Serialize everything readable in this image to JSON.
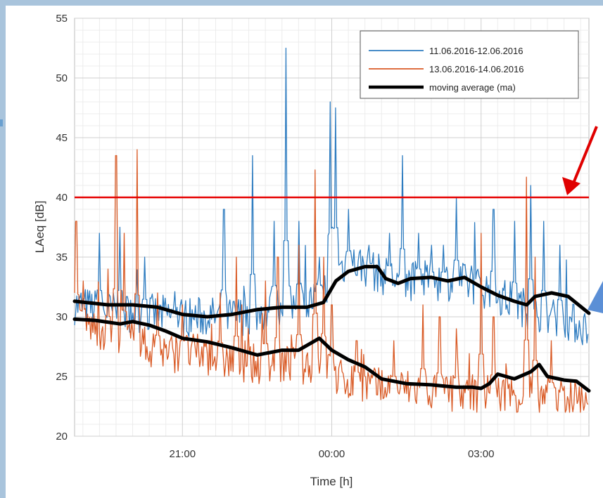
{
  "chart_data": {
    "type": "line",
    "xlabel": "Time [h]",
    "ylabel": "LAeq [dB]",
    "xlim": [
      "18:50",
      "05:10"
    ],
    "ylim": [
      20,
      55
    ],
    "x_ticks": [
      "21:00",
      "00:00",
      "03:00"
    ],
    "y_ticks": [
      20,
      25,
      30,
      35,
      40,
      45,
      50,
      55
    ],
    "grid": "minor+major",
    "legend": {
      "placement": "top-right",
      "entries": [
        "11.06.2016-12.06.2016",
        "13.06.2016-14.06.2016",
        "moving average (ma)"
      ]
    },
    "colors": {
      "series_1": "#2e7cc0",
      "series_2": "#d95a25",
      "moving_average": "#000000",
      "threshold": "#e60000",
      "arrow_red": "#e00000",
      "arrow_blue": "#5b8fd6"
    },
    "reference_line": {
      "y": 40
    },
    "series": [
      {
        "name": "11.06.2016-12.06.2016",
        "baseline": [
          [
            "18:50",
            31
          ],
          [
            "19:30",
            30.5
          ],
          [
            "20:30",
            30.2
          ],
          [
            "21:00",
            30
          ],
          [
            "22:00",
            30
          ],
          [
            "22:30",
            30.3
          ],
          [
            "23:00",
            31
          ],
          [
            "23:30",
            31
          ],
          [
            "23:50",
            32
          ],
          [
            "00:00",
            34
          ],
          [
            "00:30",
            34.5
          ],
          [
            "00:45",
            34
          ],
          [
            "01:00",
            33.5
          ],
          [
            "01:30",
            33
          ],
          [
            "02:00",
            33
          ],
          [
            "02:30",
            33
          ],
          [
            "03:00",
            32.5
          ],
          [
            "03:30",
            31.5
          ],
          [
            "04:00",
            30.5
          ],
          [
            "04:30",
            30
          ],
          [
            "05:10",
            29
          ]
        ],
        "peaks": [
          [
            "19:20",
            37
          ],
          [
            "19:45",
            37.5
          ],
          [
            "20:15",
            35
          ],
          [
            "21:50",
            39
          ],
          [
            "22:25",
            43.5
          ],
          [
            "22:50",
            38
          ],
          [
            "23:05",
            52.5
          ],
          [
            "23:20",
            38
          ],
          [
            "23:45",
            35
          ],
          [
            "23:58",
            48
          ],
          [
            "00:05",
            47.5
          ],
          [
            "00:20",
            39
          ],
          [
            "00:45",
            36
          ],
          [
            "01:10",
            37
          ],
          [
            "01:25",
            43.5
          ],
          [
            "01:45",
            37
          ],
          [
            "02:00",
            36
          ],
          [
            "02:15",
            36
          ],
          [
            "02:30",
            40
          ],
          [
            "03:15",
            39
          ],
          [
            "03:40",
            38
          ],
          [
            "04:00",
            41
          ],
          [
            "04:15",
            38
          ],
          [
            "04:35",
            36
          ]
        ]
      },
      {
        "name": "13.06.2016-14.06.2016",
        "baseline": [
          [
            "18:50",
            30
          ],
          [
            "19:15",
            29
          ],
          [
            "19:45",
            28.5
          ],
          [
            "20:15",
            27.5
          ],
          [
            "20:45",
            27
          ],
          [
            "21:00",
            27
          ],
          [
            "21:30",
            26.8
          ],
          [
            "22:00",
            26.2
          ],
          [
            "22:30",
            26
          ],
          [
            "23:00",
            26
          ],
          [
            "23:30",
            26
          ],
          [
            "23:50",
            26.5
          ],
          [
            "00:00",
            25
          ],
          [
            "00:30",
            24.5
          ],
          [
            "01:00",
            24
          ],
          [
            "01:30",
            24
          ],
          [
            "02:00",
            23.8
          ],
          [
            "02:30",
            23.5
          ],
          [
            "03:00",
            23.5
          ],
          [
            "03:30",
            23.5
          ],
          [
            "04:00",
            23.5
          ],
          [
            "04:30",
            23.3
          ],
          [
            "05:10",
            23.2
          ]
        ],
        "peaks": [
          [
            "18:52",
            38
          ],
          [
            "19:00",
            33
          ],
          [
            "19:30",
            34
          ],
          [
            "19:40",
            43.5
          ],
          [
            "19:50",
            37
          ],
          [
            "20:05",
            44
          ],
          [
            "20:30",
            32
          ],
          [
            "21:00",
            31
          ],
          [
            "21:45",
            32
          ],
          [
            "22:05",
            35
          ],
          [
            "22:40",
            33
          ],
          [
            "22:55",
            35
          ],
          [
            "23:20",
            36
          ],
          [
            "23:40",
            42.3
          ],
          [
            "23:50",
            35
          ],
          [
            "00:00",
            31
          ],
          [
            "00:30",
            28
          ],
          [
            "01:15",
            28
          ],
          [
            "01:50",
            31
          ],
          [
            "02:10",
            30
          ],
          [
            "02:30",
            29
          ],
          [
            "03:00",
            37
          ],
          [
            "03:15",
            30
          ],
          [
            "03:55",
            41.7
          ],
          [
            "04:05",
            35
          ],
          [
            "04:25",
            28
          ]
        ]
      }
    ],
    "moving_average": [
      {
        "for": "11.06.2016-12.06.2016",
        "points": [
          [
            "18:50",
            31.3
          ],
          [
            "19:30",
            31.0
          ],
          [
            "20:00",
            31.0
          ],
          [
            "20:30",
            30.8
          ],
          [
            "21:00",
            30.2
          ],
          [
            "21:30",
            30.0
          ],
          [
            "22:00",
            30.2
          ],
          [
            "22:30",
            30.6
          ],
          [
            "23:00",
            30.8
          ],
          [
            "23:30",
            30.8
          ],
          [
            "23:50",
            31.2
          ],
          [
            "00:05",
            33.0
          ],
          [
            "00:20",
            33.8
          ],
          [
            "00:40",
            34.2
          ],
          [
            "00:55",
            34.2
          ],
          [
            "01:05",
            33.2
          ],
          [
            "01:20",
            32.8
          ],
          [
            "01:35",
            33.2
          ],
          [
            "02:00",
            33.3
          ],
          [
            "02:20",
            33.0
          ],
          [
            "02:40",
            33.3
          ],
          [
            "03:00",
            32.5
          ],
          [
            "03:20",
            31.8
          ],
          [
            "03:40",
            31.3
          ],
          [
            "03:55",
            31.0
          ],
          [
            "04:05",
            31.7
          ],
          [
            "04:25",
            32.0
          ],
          [
            "04:45",
            31.7
          ],
          [
            "05:10",
            30.3
          ]
        ]
      },
      {
        "for": "13.06.2016-14.06.2016",
        "points": [
          [
            "18:50",
            29.8
          ],
          [
            "19:15",
            29.7
          ],
          [
            "19:45",
            29.4
          ],
          [
            "20:00",
            29.6
          ],
          [
            "20:20",
            29.3
          ],
          [
            "20:40",
            28.8
          ],
          [
            "21:00",
            28.2
          ],
          [
            "21:30",
            27.9
          ],
          [
            "22:00",
            27.4
          ],
          [
            "22:30",
            26.8
          ],
          [
            "23:00",
            27.2
          ],
          [
            "23:20",
            27.2
          ],
          [
            "23:35",
            27.8
          ],
          [
            "23:45",
            28.2
          ],
          [
            "00:00",
            27.2
          ],
          [
            "00:20",
            26.4
          ],
          [
            "00:40",
            25.8
          ],
          [
            "01:00",
            24.8
          ],
          [
            "01:30",
            24.4
          ],
          [
            "02:00",
            24.3
          ],
          [
            "02:30",
            24.1
          ],
          [
            "02:50",
            24.1
          ],
          [
            "03:00",
            24.0
          ],
          [
            "03:10",
            24.4
          ],
          [
            "03:20",
            25.2
          ],
          [
            "03:40",
            24.8
          ],
          [
            "04:00",
            25.4
          ],
          [
            "04:10",
            26.0
          ],
          [
            "04:20",
            25.0
          ],
          [
            "04:40",
            24.7
          ],
          [
            "04:55",
            24.6
          ],
          [
            "05:10",
            23.8
          ]
        ]
      }
    ]
  }
}
